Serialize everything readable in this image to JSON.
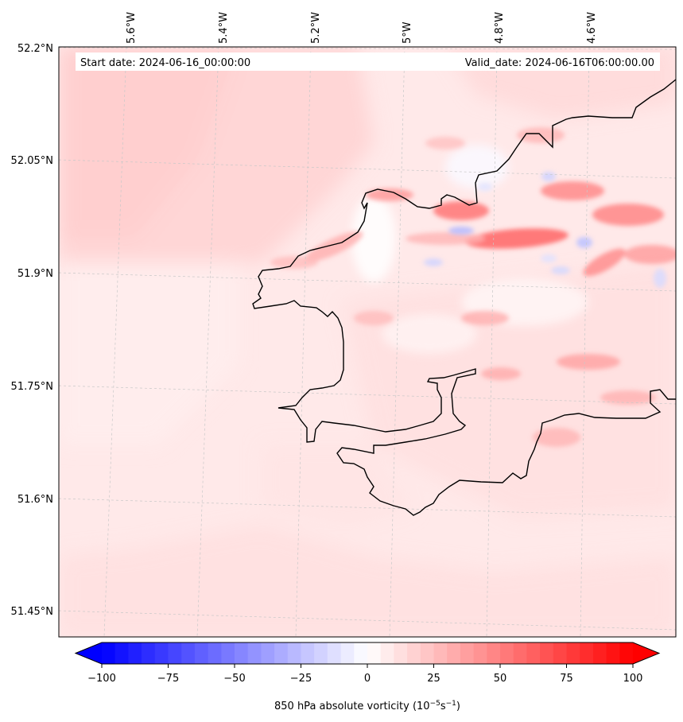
{
  "map": {
    "start_label": "Start date: 2024-06-16_00:00:00",
    "valid_label": "Valid_date: 2024-06-16T06:00:00.00",
    "lon_labels": [
      "5.6°W",
      "5.4°W",
      "5.2°W",
      "5°W",
      "4.8°W",
      "4.6°W"
    ],
    "lat_labels": [
      "52.2°N",
      "52.05°N",
      "51.9°N",
      "51.75°N",
      "51.6°N",
      "51.45°N"
    ]
  },
  "colorbar": {
    "ticks": [
      "−100",
      "−75",
      "−50",
      "−25",
      "0",
      "25",
      "50",
      "75",
      "100"
    ],
    "tick_values": [
      -100,
      -75,
      -50,
      -25,
      0,
      25,
      50,
      75,
      100
    ],
    "vmin": -100,
    "vmax": 100,
    "label_prefix": "850 hPa absolute vorticity (10",
    "label_exp1": "−5",
    "label_mid": "s",
    "label_exp2": "−1",
    "label_suffix": ")",
    "colors": {
      "low": "#0000ff",
      "mid": "#ffffff",
      "high": "#ff0000"
    }
  }
}
